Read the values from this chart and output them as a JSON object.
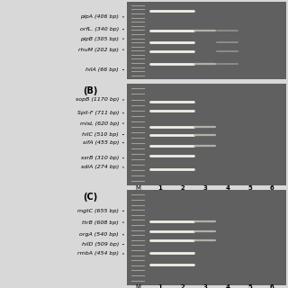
{
  "figure_bg": "#d8d8d8",
  "gel_bg": "#606060",
  "band_bright": "#f0f0e8",
  "band_mid": "#c8c8c0",
  "band_dim": "#909088",
  "marker_col": "#a0a098",
  "text_col": "#111111",
  "label_fontsize": 4.5,
  "lane_label_fontsize": 5.0,
  "panel_A": {
    "show_header": false,
    "labels": [
      {
        "gene": "pipA",
        "size": "(406 bp)",
        "yf": 0.2
      },
      {
        "gene": "orfL.",
        "size": "(340 bp)",
        "yf": 0.36
      },
      {
        "gene": "pipB",
        "size": "(305 bp)",
        "yf": 0.48
      },
      {
        "gene": "rhuM",
        "size": "(202 bp)",
        "yf": 0.62
      },
      {
        "gene": "hilA",
        "size": "(66 bp)",
        "yf": 0.88
      }
    ],
    "top_label": "",
    "bands_M": [],
    "bands_1": [
      0.2,
      0.36,
      0.48,
      0.62,
      0.88
    ],
    "bands_2": [
      0.2,
      0.36,
      0.48,
      0.62,
      0.88
    ],
    "bands_3": [
      0.2,
      0.62
    ],
    "bands_4": [
      0.2,
      0.36,
      0.48,
      0.62
    ],
    "bands_5": [],
    "bands_6": []
  },
  "panel_B": {
    "show_header": true,
    "top_label": "(B)",
    "labels": [
      {
        "gene": "sopB",
        "size": "(1170 bp)",
        "yf": 0.16
      },
      {
        "gene": "SpiI-F",
        "size": "(711 bp)",
        "yf": 0.29
      },
      {
        "gene": "misL",
        "size": "(620 bp)",
        "yf": 0.39
      },
      {
        "gene": "hilC",
        "size": "(510 bp)",
        "yf": 0.5
      },
      {
        "gene": "sifA",
        "size": "(455 bp)",
        "yf": 0.58
      },
      {
        "gene": "ssrB",
        "size": "(310 bp)",
        "yf": 0.73
      },
      {
        "gene": "sdiA",
        "size": "(274 bp)",
        "yf": 0.82
      }
    ],
    "bands_M": [],
    "bands_1": [
      0.16,
      0.29,
      0.39,
      0.5,
      0.58,
      0.73,
      0.82
    ],
    "bands_2": [
      0.16,
      0.29,
      0.39,
      0.5,
      0.58,
      0.73,
      0.82
    ],
    "bands_3": [
      0.39,
      0.5,
      0.58
    ],
    "bands_4": [],
    "bands_5": [],
    "bands_6": []
  },
  "panel_C": {
    "show_header": true,
    "top_label": "(C)",
    "labels": [
      {
        "gene": "mgtC",
        "size": "(655 bp)",
        "yf": 0.22
      },
      {
        "gene": "ttrB",
        "size": "(608 bp)",
        "yf": 0.34
      },
      {
        "gene": "orgA",
        "size": "(540 bp)",
        "yf": 0.47
      },
      {
        "gene": "hilD",
        "size": "(509 bp)",
        "yf": 0.57
      },
      {
        "gene": "rmbA",
        "size": "(454 bp)",
        "yf": 0.67
      }
    ],
    "bands_M": [],
    "bands_1": [
      0.22,
      0.34,
      0.47,
      0.57,
      0.67
    ],
    "bands_2": [
      0.22,
      0.34,
      0.47,
      0.57,
      0.67
    ],
    "bands_3": [
      0.47,
      0.57,
      0.67
    ],
    "bands_4": [],
    "bands_5": [],
    "bands_6": []
  }
}
